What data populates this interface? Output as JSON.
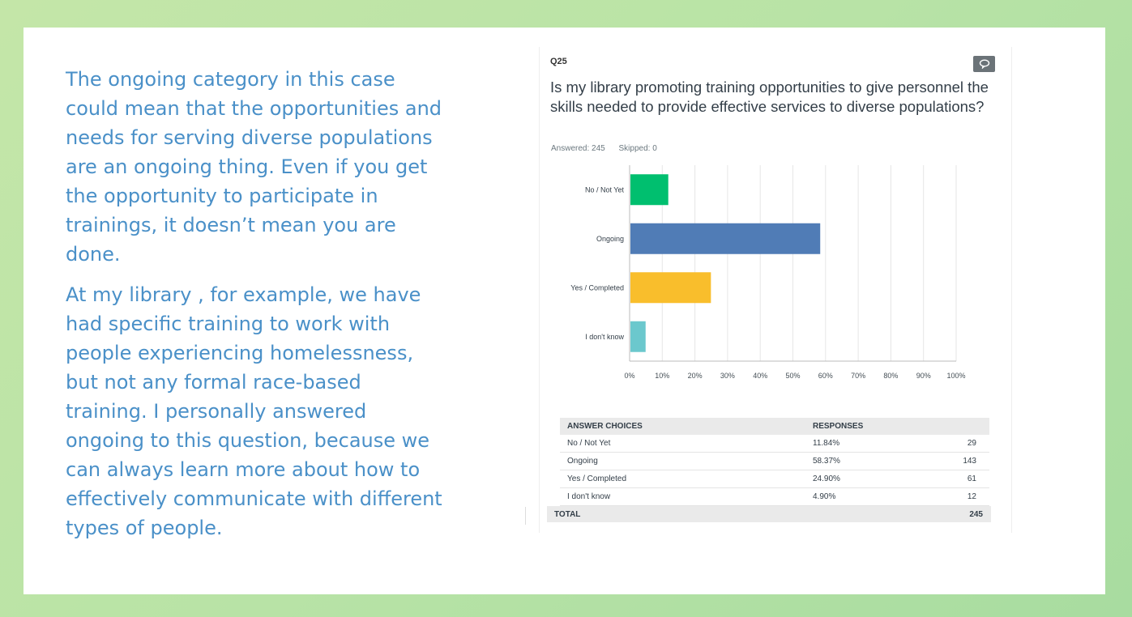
{
  "narrative": {
    "paragraph1": "The ongoing category in this case could mean that the opportunities and needs for serving diverse populations are an ongoing thing. Even if you get the opportunity to participate in trainings, it doesn’t mean you are done.",
    "paragraph2": "At my library , for example, we have had specific training to work with people experiencing homelessness, but not any formal race-based training. I personally answered ongoing to this question, because we can always learn more about how to effectively communicate with different types of people."
  },
  "question": {
    "number": "Q25",
    "text": "Is my library promoting training opportunities to give personnel the skills needed to provide effective services to diverse populations?",
    "answered": "Answered: 245",
    "skipped": "Skipped: 0",
    "comment_icon": "speech-bubble-icon"
  },
  "chart_data": {
    "type": "bar",
    "orientation": "horizontal",
    "categories": [
      "No / Not Yet",
      "Ongoing",
      "Yes / Completed",
      "I don't know"
    ],
    "values": [
      11.84,
      58.37,
      24.9,
      4.9
    ],
    "colors": [
      "#00bf6f",
      "#507cb6",
      "#f9be2c",
      "#6bc8cd"
    ],
    "xlim": [
      0,
      100
    ],
    "x_ticks": [
      "0%",
      "10%",
      "20%",
      "30%",
      "40%",
      "50%",
      "60%",
      "70%",
      "80%",
      "90%",
      "100%"
    ],
    "grid": true
  },
  "table": {
    "headers": [
      "ANSWER CHOICES",
      "RESPONSES",
      ""
    ],
    "rows": [
      {
        "choice": "No / Not Yet",
        "percent": "11.84%",
        "count": "29"
      },
      {
        "choice": "Ongoing",
        "percent": "58.37%",
        "count": "143"
      },
      {
        "choice": "Yes / Completed",
        "percent": "24.90%",
        "count": "61"
      },
      {
        "choice": "I don't know",
        "percent": "4.90%",
        "count": "12"
      }
    ],
    "total_label": "TOTAL",
    "total_value": "245"
  }
}
